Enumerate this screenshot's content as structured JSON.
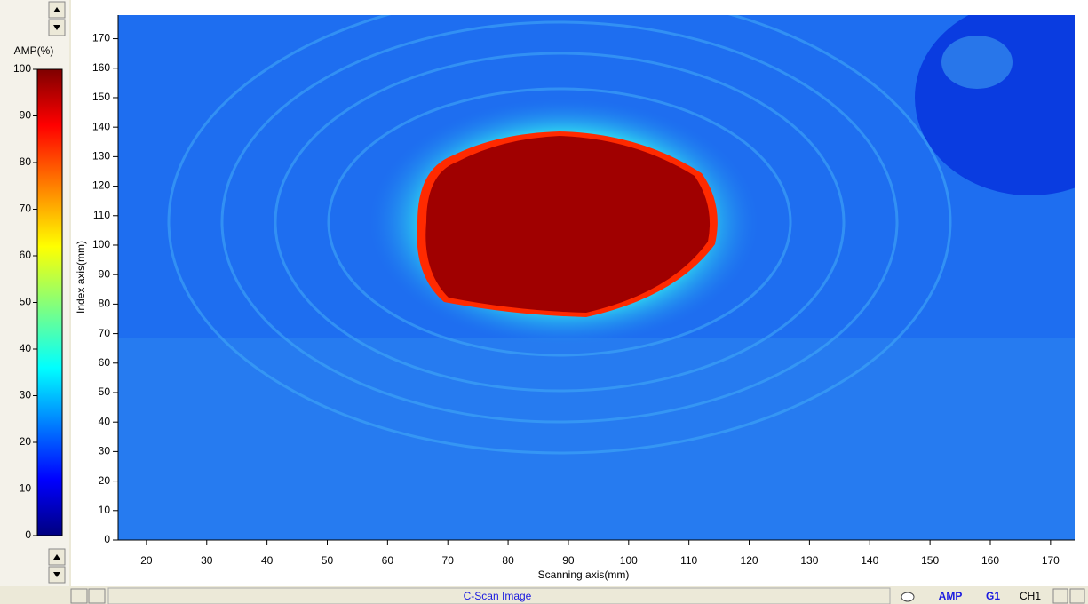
{
  "colorbar": {
    "label": "AMP(%)",
    "lim": [
      0,
      100
    ],
    "ticks": [
      0,
      10,
      20,
      30,
      40,
      50,
      60,
      70,
      80,
      90,
      100
    ]
  },
  "plot": {
    "x_label": "Scanning axis(mm)",
    "y_label": "Index axis(mm)",
    "xlim": [
      15.3,
      174
    ],
    "ylim": [
      0,
      178
    ],
    "xticks": [
      20,
      30,
      40,
      50,
      60,
      70,
      80,
      90,
      100,
      110,
      120,
      130,
      140,
      150,
      160,
      170
    ],
    "yticks": [
      0,
      10,
      20,
      30,
      40,
      50,
      60,
      70,
      80,
      90,
      100,
      110,
      120,
      130,
      140,
      150,
      160,
      170
    ]
  },
  "status_bar": {
    "title": "C-Scan Image",
    "mode": "AMP",
    "gate": "G1",
    "channel": "CH1"
  }
}
